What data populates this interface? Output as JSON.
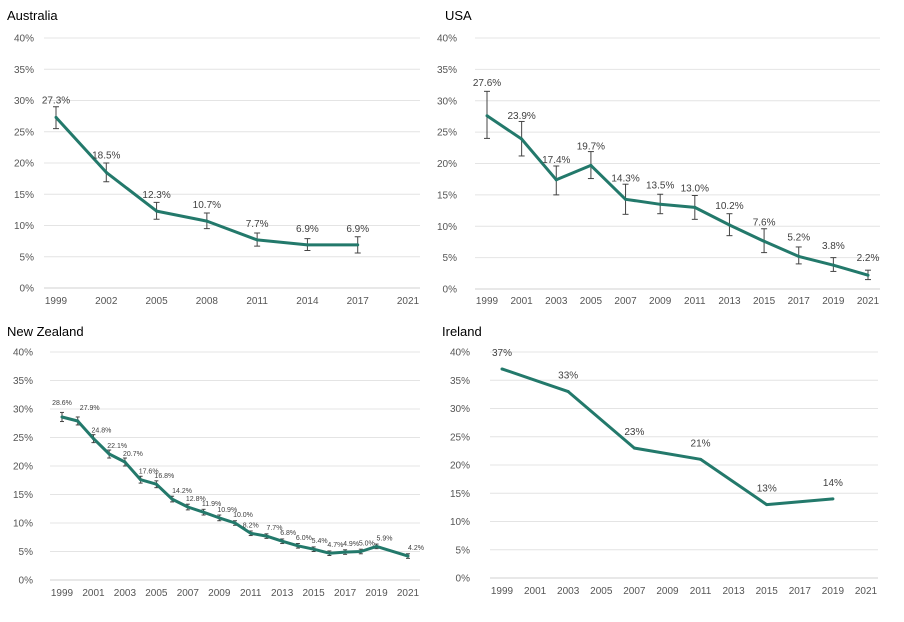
{
  "chart_data": [
    {
      "type": "line",
      "title": "Australia",
      "x": [
        1999,
        2002,
        2005,
        2008,
        2011,
        2014,
        2017
      ],
      "values": [
        27.3,
        18.5,
        12.3,
        10.7,
        7.7,
        6.9,
        6.9
      ],
      "labels": [
        "27.3%",
        "18.5%",
        "12.3%",
        "10.7%",
        "7.7%",
        "6.9%",
        "6.9%"
      ],
      "error_bars": [
        [
          25.5,
          29.0
        ],
        [
          17.0,
          20.0
        ],
        [
          11.0,
          13.7
        ],
        [
          9.5,
          12.0
        ],
        [
          6.7,
          8.8
        ],
        [
          6.0,
          7.9
        ],
        [
          5.6,
          8.2
        ]
      ],
      "x_ticks": [
        "1999",
        "2002",
        "2005",
        "2008",
        "2011",
        "2014",
        "2017",
        "2021"
      ],
      "y_ticks": [
        "0%",
        "5%",
        "10%",
        "15%",
        "20%",
        "25%",
        "30%",
        "35%",
        "40%"
      ],
      "ylim": [
        0,
        40
      ],
      "grid": true,
      "color": "#23796b"
    },
    {
      "type": "line",
      "title": "USA",
      "x": [
        1999,
        2001,
        2003,
        2005,
        2007,
        2009,
        2011,
        2013,
        2015,
        2017,
        2019,
        2021
      ],
      "values": [
        27.6,
        23.9,
        17.4,
        19.7,
        14.3,
        13.5,
        13.0,
        10.2,
        7.6,
        5.2,
        3.8,
        2.2
      ],
      "labels": [
        "27.6%",
        "23.9%",
        "17.4%",
        "19.7%",
        "14.3%",
        "13.5%",
        "13.0%",
        "10.2%",
        "7.6%",
        "5.2%",
        "3.8%",
        "2.2%"
      ],
      "error_bars": [
        [
          24.0,
          31.5
        ],
        [
          21.2,
          26.7
        ],
        [
          15.0,
          19.6
        ],
        [
          17.6,
          21.9
        ],
        [
          11.9,
          16.7
        ],
        [
          12.0,
          15.1
        ],
        [
          11.1,
          14.9
        ],
        [
          8.5,
          12.0
        ],
        [
          5.8,
          9.6
        ],
        [
          4.0,
          6.7
        ],
        [
          2.8,
          5.0
        ],
        [
          1.5,
          3.0
        ]
      ],
      "x_ticks": [
        "1999",
        "2001",
        "2003",
        "2005",
        "2007",
        "2009",
        "2011",
        "2013",
        "2015",
        "2017",
        "2019",
        "2021"
      ],
      "y_ticks": [
        "0%",
        "5%",
        "10%",
        "15%",
        "20%",
        "25%",
        "30%",
        "35%",
        "40%"
      ],
      "ylim": [
        0,
        40
      ],
      "grid": true,
      "color": "#23796b"
    },
    {
      "type": "line",
      "title": "New Zealand",
      "x": [
        1999,
        2000,
        2001,
        2002,
        2003,
        2004,
        2005,
        2006,
        2007,
        2008,
        2009,
        2010,
        2011,
        2012,
        2013,
        2014,
        2015,
        2016,
        2017,
        2018,
        2019,
        2021
      ],
      "values": [
        28.6,
        27.9,
        24.8,
        22.1,
        20.7,
        17.6,
        16.8,
        14.2,
        12.8,
        11.9,
        10.9,
        10.0,
        8.2,
        7.7,
        6.8,
        6.0,
        5.4,
        4.7,
        4.9,
        5.0,
        5.9,
        4.2
      ],
      "labels": [
        "28.6%",
        "27.9%",
        "24.8%",
        "22.1%",
        "20.7%",
        "17.6%",
        "16.8%",
        "14.2%",
        "12.8%",
        "11.9%",
        "10.9%",
        "10.0%",
        "8.2%",
        "7.7%",
        "6.8%",
        "6.0%",
        "5.4%",
        "4.7%",
        "4.9%",
        "5.0%",
        "5.9%",
        "4.2%"
      ],
      "error_bars": [
        [
          27.8,
          29.4
        ],
        [
          27.2,
          28.6
        ],
        [
          24.1,
          25.5
        ],
        [
          21.4,
          22.8
        ],
        [
          20.0,
          21.4
        ],
        [
          17.0,
          18.2
        ],
        [
          16.2,
          17.4
        ],
        [
          13.7,
          14.7
        ],
        [
          12.3,
          13.3
        ],
        [
          11.4,
          12.4
        ],
        [
          10.4,
          11.4
        ],
        [
          9.6,
          10.4
        ],
        [
          7.8,
          8.6
        ],
        [
          7.3,
          8.1
        ],
        [
          6.4,
          7.2
        ],
        [
          5.6,
          6.4
        ],
        [
          5.0,
          5.8
        ],
        [
          4.3,
          5.1
        ],
        [
          4.5,
          5.3
        ],
        [
          4.6,
          5.4
        ],
        [
          5.5,
          6.3
        ],
        [
          3.8,
          4.6
        ]
      ],
      "x_ticks": [
        "1999",
        "2001",
        "2003",
        "2005",
        "2007",
        "2009",
        "2011",
        "2013",
        "2015",
        "2017",
        "2019",
        "2021"
      ],
      "y_ticks": [
        "0%",
        "5%",
        "10%",
        "15%",
        "20%",
        "25%",
        "30%",
        "35%",
        "40%"
      ],
      "ylim": [
        0,
        40
      ],
      "grid": true,
      "color": "#23796b"
    },
    {
      "type": "line",
      "title": "Ireland",
      "x": [
        1999,
        2003,
        2007,
        2011,
        2015,
        2019
      ],
      "values": [
        37,
        33,
        23,
        21,
        13,
        14
      ],
      "labels": [
        "37%",
        "33%",
        "23%",
        "21%",
        "13%",
        "14%"
      ],
      "x_ticks": [
        "1999",
        "2001",
        "2003",
        "2005",
        "2007",
        "2009",
        "2011",
        "2013",
        "2015",
        "2017",
        "2019",
        "2021"
      ],
      "y_ticks": [
        "0%",
        "5%",
        "10%",
        "15%",
        "20%",
        "25%",
        "30%",
        "35%",
        "40%"
      ],
      "ylim": [
        0,
        40
      ],
      "grid": true,
      "color": "#23796b"
    }
  ]
}
